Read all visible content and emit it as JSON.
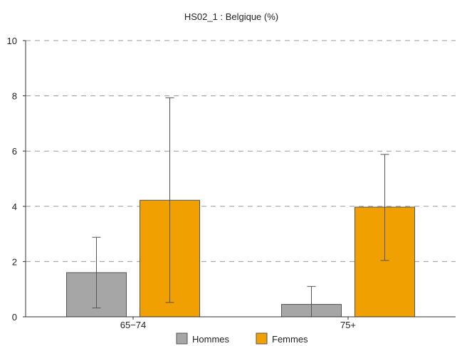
{
  "chart_data": {
    "type": "bar",
    "title": "HS02_1 : Belgique (%)",
    "xlabel": "",
    "ylabel": "",
    "categories": [
      "65−74",
      "75+"
    ],
    "ylim": [
      0,
      10
    ],
    "yticks": [
      0,
      2,
      4,
      6,
      8,
      10
    ],
    "grid": true,
    "legend_position": "bottom",
    "series": [
      {
        "name": "Hommes",
        "color": "#a6a6a6",
        "values": [
          1.6,
          0.45
        ],
        "ci_low": [
          0.32,
          0.0
        ],
        "ci_high": [
          2.88,
          1.1
        ]
      },
      {
        "name": "Femmes",
        "color": "#f0a000",
        "values": [
          4.22,
          3.97
        ],
        "ci_low": [
          0.52,
          2.04
        ],
        "ci_high": [
          7.93,
          5.88
        ]
      }
    ]
  }
}
